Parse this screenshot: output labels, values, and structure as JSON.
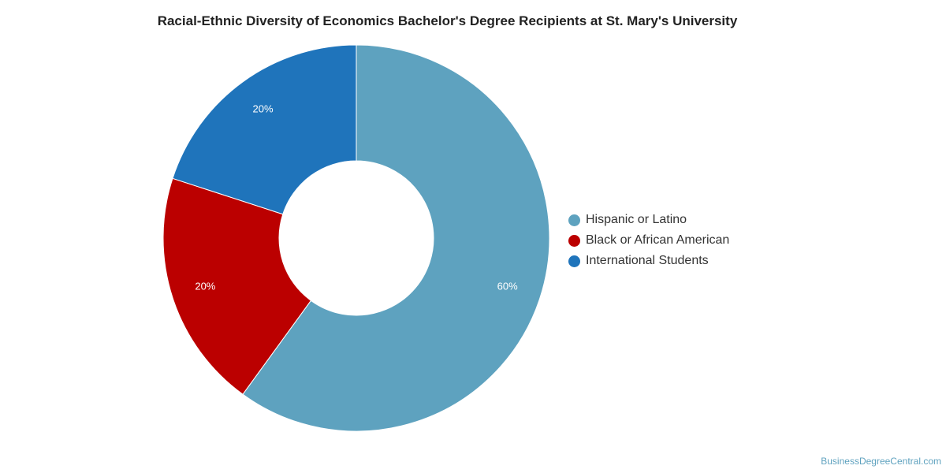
{
  "chart_data": {
    "type": "pie",
    "title": "Racial-Ethnic Diversity of Economics Bachelor's Degree Recipients at St. Mary's University",
    "donut": true,
    "legend_position": "right",
    "slices": [
      {
        "label": "Hispanic or Latino",
        "value": 60,
        "display": "60%",
        "color": "#5ea2bf"
      },
      {
        "label": "Black or African American",
        "value": 20,
        "display": "20%",
        "color": "#bb0000"
      },
      {
        "label": "International Students",
        "value": 20,
        "display": "20%",
        "color": "#1f74bb"
      }
    ]
  },
  "watermark": "BusinessDegreeCentral.com"
}
